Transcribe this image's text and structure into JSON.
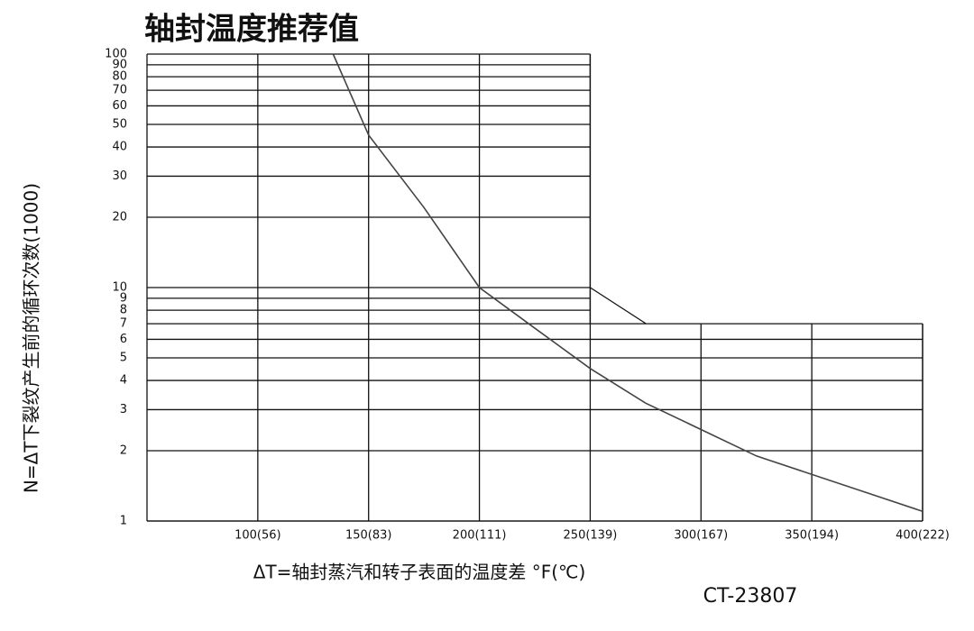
{
  "chart_data": {
    "type": "line",
    "title": "轴封温度推荐值",
    "y_label": "N=ΔT下裂纹产生前的循环次数(1000)",
    "x_label": "ΔT=轴封蒸汽和转子表面的温度差 °F(℃)",
    "code": "CT-23807",
    "x": [
      134,
      150,
      175,
      200,
      225,
      250,
      275,
      325,
      375,
      400
    ],
    "series": [
      {
        "name": "N",
        "color": "#444444",
        "values": [
          100,
          45,
          22,
          10,
          6.7,
          4.5,
          3.2,
          1.9,
          1.32,
          1.1
        ]
      }
    ],
    "xlim": [
      50,
      400
    ],
    "xticks": [
      {
        "value": 100,
        "label": "100(56)"
      },
      {
        "value": 150,
        "label": "150(83)"
      },
      {
        "value": 200,
        "label": "200(111)"
      },
      {
        "value": 250,
        "label": "250(139)"
      },
      {
        "value": 300,
        "label": "300(167)"
      },
      {
        "value": 350,
        "label": "350(194)"
      },
      {
        "value": 400,
        "label": "400(222)"
      }
    ],
    "ylim": [
      1,
      100
    ],
    "yticks": [
      1,
      2,
      3,
      4,
      5,
      6,
      7,
      8,
      9,
      10,
      20,
      30,
      40,
      50,
      60,
      70,
      80,
      90,
      100
    ],
    "log_y": true,
    "grid": true
  }
}
